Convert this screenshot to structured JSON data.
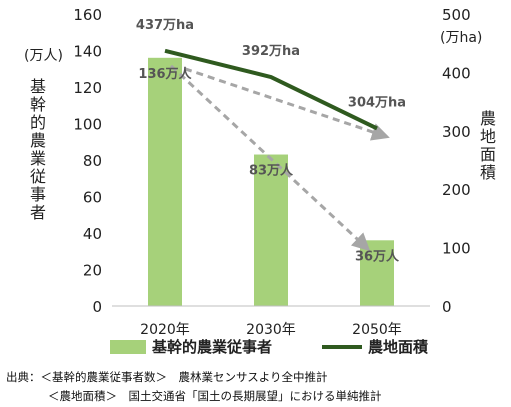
{
  "chart_data": {
    "type": "bar+line",
    "categories": [
      "2020年",
      "2030年",
      "2050年"
    ],
    "series": [
      {
        "name": "基幹的農業従事者",
        "kind": "bar",
        "axis": "left",
        "values": [
          136,
          83,
          36
        ],
        "data_labels": [
          "136万人",
          "83万人",
          "36万人"
        ],
        "color": "#a6d17a"
      },
      {
        "name": "農地面積",
        "kind": "line",
        "axis": "right",
        "values": [
          437,
          392,
          304
        ],
        "data_labels": [
          "437万ha",
          "392万ha",
          "304万ha"
        ],
        "color": "#2f5a1f"
      }
    ],
    "y_left": {
      "label": "基幹的農業従事者",
      "unit": "(万人)",
      "range": [
        0,
        160
      ],
      "ticks": [
        0,
        20,
        40,
        60,
        80,
        100,
        120,
        140,
        160
      ]
    },
    "y_right": {
      "label": "農地面積",
      "unit": "(万ha)",
      "range": [
        0,
        500
      ],
      "ticks": [
        0,
        100,
        200,
        300,
        400,
        500
      ]
    },
    "trend_arrows": {
      "style": "dashed",
      "color": "#a6a6a6",
      "items": [
        {
          "series": "基幹的農業従事者",
          "from": "2020年",
          "to": "2050年"
        },
        {
          "series": "農地面積",
          "from": "2020年",
          "to": "2050年"
        }
      ]
    },
    "legend_position": "bottom",
    "grid": false
  },
  "source": {
    "line1": "出典：＜基幹的農業従事者数＞　農林業センサスより全中推計",
    "line2": "＜農地面積＞　国土交通省「国土の長期展望」における単純推計"
  }
}
